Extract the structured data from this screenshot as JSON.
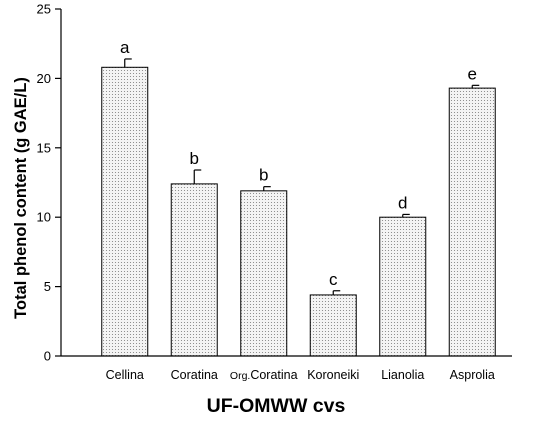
{
  "chart_data": {
    "type": "bar",
    "title": "",
    "xlabel": "UF-OMWW cvs",
    "ylabel": "Total phenol content (g GAE/L)",
    "ylim": [
      0,
      25
    ],
    "yticks": [
      0,
      5,
      10,
      15,
      20,
      25
    ],
    "categories": [
      {
        "prefix": "",
        "label": "Cellina"
      },
      {
        "prefix": "",
        "label": "Coratina"
      },
      {
        "prefix": "Org.",
        "label": "Coratina"
      },
      {
        "prefix": "",
        "label": "Koroneiki"
      },
      {
        "prefix": "",
        "label": "Lianolia"
      },
      {
        "prefix": "",
        "label": "Asprolia"
      }
    ],
    "values": [
      20.8,
      12.4,
      11.9,
      4.4,
      10.0,
      19.3
    ],
    "error_plus": [
      0.6,
      1.0,
      0.3,
      0.3,
      0.2,
      0.2
    ],
    "significance_letters": [
      "a",
      "b",
      "b",
      "c",
      "d",
      "e"
    ],
    "grid": false,
    "bar_fill": "dotted",
    "colors": {
      "bar_background": "#f4f4f4",
      "bar_dots": "#777777",
      "axis": "#000000"
    }
  }
}
